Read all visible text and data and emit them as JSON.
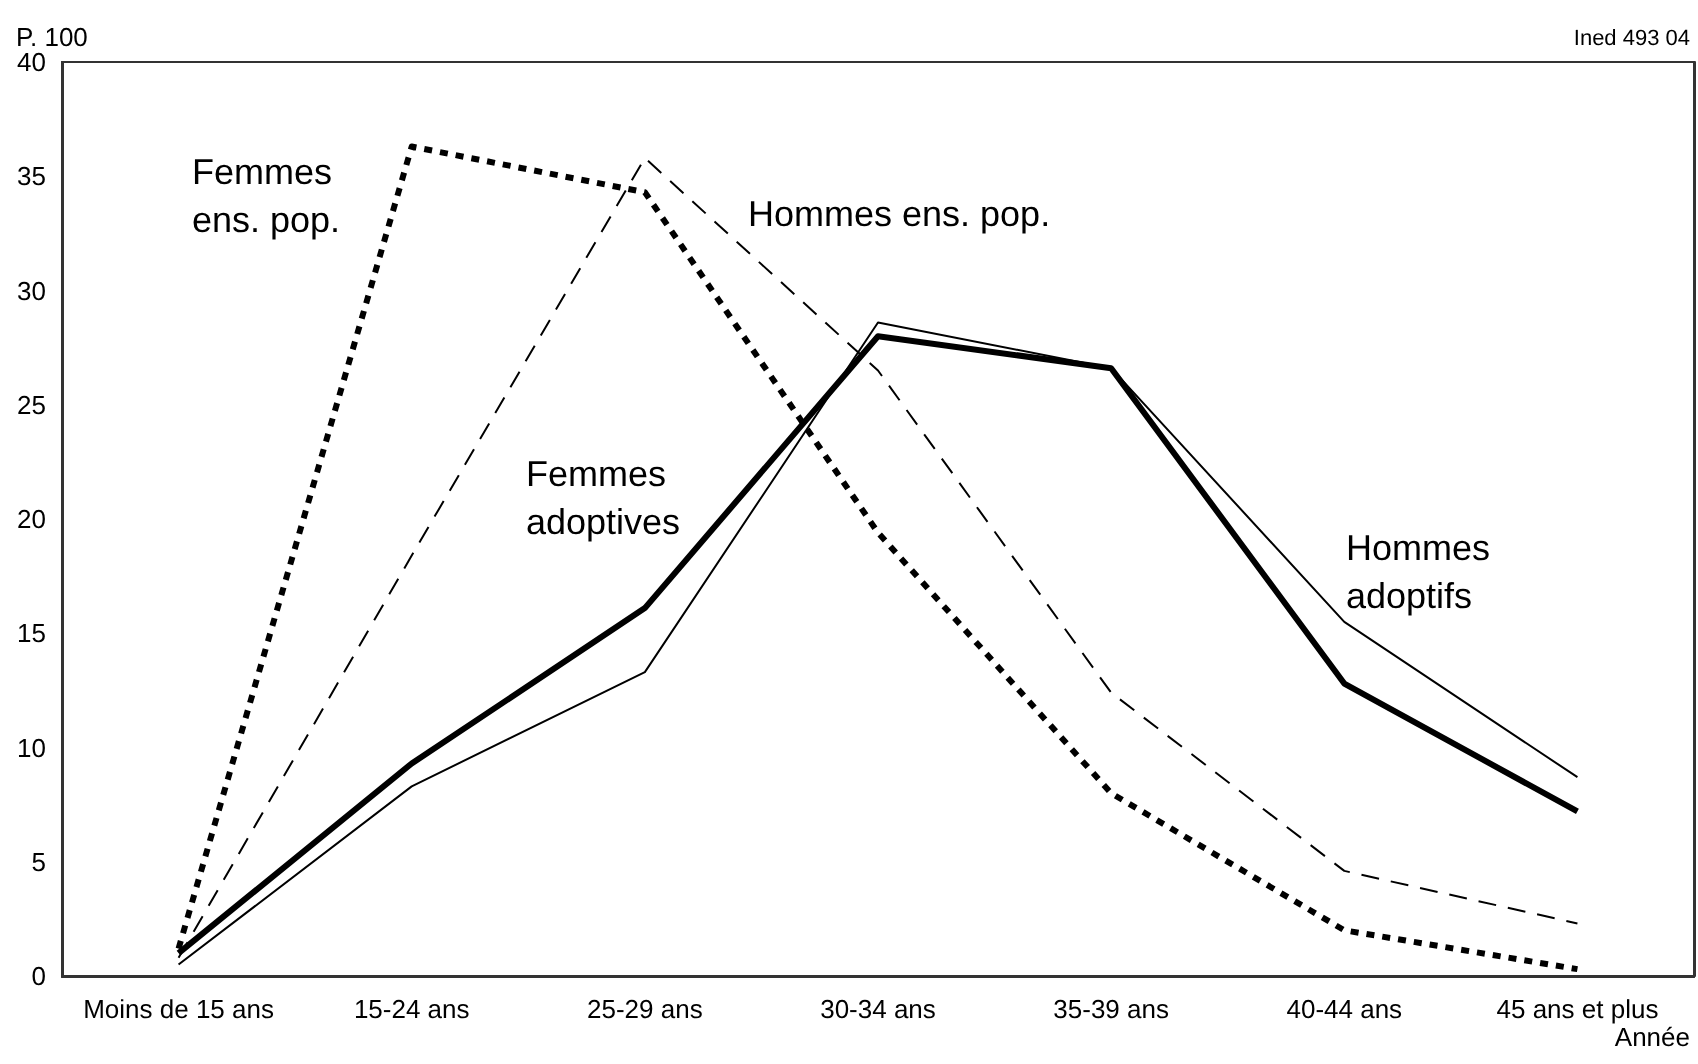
{
  "chart_data": {
    "type": "line",
    "ylabel": "P. 100",
    "xlabel": "Année",
    "annotations": [
      "Ined 493 04"
    ],
    "categories": [
      "Moins de 15 ans",
      "15-24 ans",
      "25-29 ans",
      "30-34 ans",
      "35-39 ans",
      "40-44 ans",
      "45 ans et plus"
    ],
    "series": [
      {
        "name": "Femmes ens. pop.",
        "color": "#000000",
        "line_style": "dotted",
        "values": [
          1.2,
          36.3,
          34.3,
          19.4,
          8.0,
          2.0,
          0.3
        ]
      },
      {
        "name": "Hommes ens. pop.",
        "color": "#000000",
        "line_style": "dashed",
        "values": [
          0.8,
          18.4,
          35.8,
          26.5,
          12.4,
          4.6,
          2.3
        ]
      },
      {
        "name": "Femmes adoptives",
        "color": "#000000",
        "line_style": "solid",
        "values": [
          1.0,
          9.3,
          16.1,
          28.0,
          26.6,
          12.8,
          7.2
        ]
      },
      {
        "name": "Hommes adoptifs",
        "color": "#000000",
        "line_style": "solid",
        "values": [
          0.5,
          8.3,
          13.3,
          28.6,
          26.6,
          15.5,
          8.7
        ]
      }
    ],
    "ylim": [
      0,
      40
    ],
    "yticks": [
      0,
      5,
      10,
      15,
      20,
      25,
      30,
      35,
      40
    ],
    "grid": false,
    "legend": false,
    "marker": "none"
  }
}
